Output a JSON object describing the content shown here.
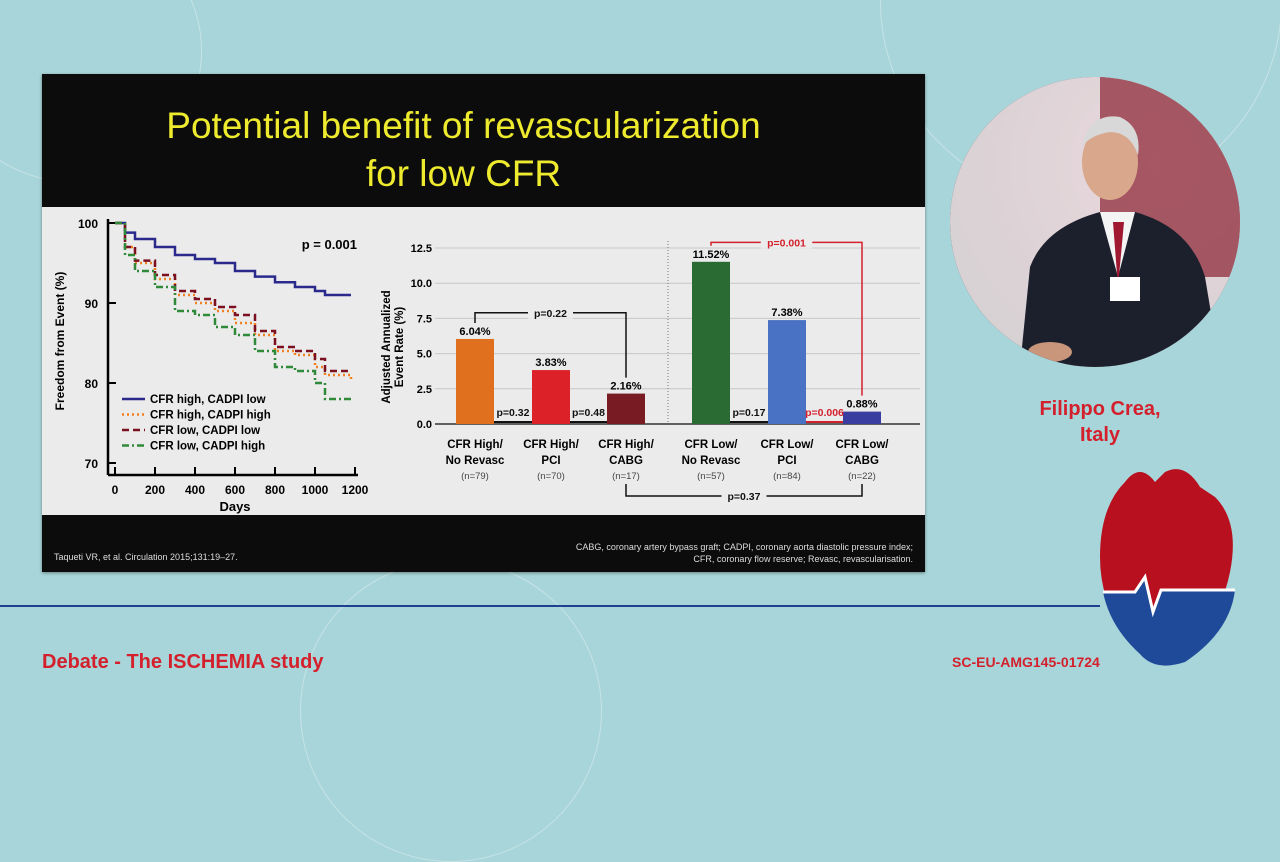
{
  "slide": {
    "title_line1": "Potential benefit of revascularization",
    "title_line2": "for low CFR",
    "citation": "Taqueti VR, et al. Circulation 2015;131:19–27.",
    "abbreviations_line1": "CABG, coronary artery bypass graft; CADPI, coronary aorta diastolic pressure index;",
    "abbreviations_line2": "CFR, coronary flow reserve; Revasc, revascularisation."
  },
  "speaker": {
    "name_line1": "Filippo Crea,",
    "name_line2": "Italy"
  },
  "footer": {
    "event": "Debate - The ISCHEMIA study",
    "code": "SC-EU-AMG145-01724"
  },
  "colors": {
    "title": "#eeea2e",
    "accent_red": "#d4202c",
    "rule": "#1f3f8f"
  },
  "chart_data": [
    {
      "type": "line",
      "title": "",
      "xlabel": "Days",
      "ylabel": "Freedom from Event (%)",
      "xlim": [
        0,
        1200
      ],
      "ylim": [
        70,
        100
      ],
      "xticks": [
        "0",
        "200",
        "400",
        "600",
        "800",
        "1000",
        "1200"
      ],
      "yticks": [
        "70",
        "80",
        "90",
        "100"
      ],
      "annotation": "p = 0.001",
      "legend_position": "bottom-left",
      "series": [
        {
          "name": "CFR high, CADPI low",
          "color": "#2b2a8c",
          "dash": "",
          "x": [
            0,
            50,
            100,
            200,
            300,
            400,
            500,
            600,
            700,
            800,
            900,
            1000,
            1050,
            1180
          ],
          "y": [
            100,
            98.8,
            98,
            97,
            96,
            95.5,
            95,
            94,
            93.3,
            92.6,
            92,
            91.5,
            91,
            91
          ]
        },
        {
          "name": "CFR high, CADPI high",
          "color": "#f08020",
          "dash": "2,3",
          "x": [
            0,
            50,
            100,
            200,
            300,
            400,
            500,
            600,
            700,
            800,
            900,
            1000,
            1050,
            1180
          ],
          "y": [
            100,
            97,
            95,
            93,
            91,
            90,
            89,
            87.5,
            86,
            84,
            83.5,
            82,
            81,
            80.5
          ]
        },
        {
          "name": "CFR low,  CADPI low",
          "color": "#7a1020",
          "dash": "7,4",
          "x": [
            0,
            50,
            100,
            200,
            300,
            400,
            500,
            600,
            700,
            800,
            900,
            1000,
            1050,
            1180
          ],
          "y": [
            100,
            97,
            95.3,
            93.5,
            91.5,
            90.5,
            89.5,
            88.5,
            86.5,
            84.5,
            84,
            83,
            81.5,
            81.5
          ]
        },
        {
          "name": "CFR low,  CADPI high",
          "color": "#2f8a3a",
          "dash": "7,3,2,3",
          "x": [
            0,
            50,
            100,
            200,
            300,
            400,
            500,
            600,
            700,
            800,
            900,
            1000,
            1050,
            1180
          ],
          "y": [
            100,
            96,
            94,
            92,
            89,
            88.5,
            87,
            86,
            84,
            82,
            81.5,
            80,
            78,
            78
          ]
        }
      ]
    },
    {
      "type": "bar",
      "ylabel_line1": "Adjusted Annualized",
      "ylabel_line2": "Event Rate (%)",
      "ylim": [
        0,
        12.5
      ],
      "yticks": [
        "0.0",
        "2.5",
        "5.0",
        "7.5",
        "10.0",
        "12.5"
      ],
      "categories": [
        {
          "line1": "CFR High/",
          "line2": "No Revasc",
          "n": "(n=79)"
        },
        {
          "line1": "CFR High/",
          "line2": "PCI",
          "n": "(n=70)"
        },
        {
          "line1": "CFR High/",
          "line2": "CABG",
          "n": "(n=17)"
        },
        {
          "line1": "CFR Low/",
          "line2": "No Revasc",
          "n": "(n=57)"
        },
        {
          "line1": "CFR Low/",
          "line2": "PCI",
          "n": "(n=84)"
        },
        {
          "line1": "CFR Low/",
          "line2": "CABG",
          "n": "(n=22)"
        }
      ],
      "values": [
        6.04,
        3.83,
        2.16,
        11.52,
        7.38,
        0.88
      ],
      "value_labels": [
        "6.04%",
        "3.83%",
        "2.16%",
        "11.52%",
        "7.38%",
        "0.88%"
      ],
      "bar_colors": [
        "#e0701e",
        "#dc2128",
        "#781b22",
        "#2a6a33",
        "#4a72c4",
        "#3a3da0"
      ],
      "comparisons": [
        {
          "label": "p=0.32",
          "from": 0,
          "to": 1,
          "kind": "arrow",
          "color": "#111111"
        },
        {
          "label": "p=0.48",
          "from": 1,
          "to": 2,
          "kind": "arrow",
          "color": "#111111"
        },
        {
          "label": "p=0.17",
          "from": 3,
          "to": 4,
          "kind": "arrow",
          "color": "#111111"
        },
        {
          "label": "p=0.006",
          "from": 4,
          "to": 5,
          "kind": "arrow",
          "color": "#d4202c"
        },
        {
          "label": "p=0.22",
          "from": 0,
          "to": 2,
          "kind": "bracket-top",
          "color": "#111111"
        },
        {
          "label": "p=0.001",
          "from": 3,
          "to": 5,
          "kind": "bracket-top",
          "color": "#d4202c"
        },
        {
          "label": "p=0.37",
          "from": 2,
          "to": 5,
          "kind": "bracket-bottom",
          "color": "#111111"
        }
      ]
    }
  ]
}
